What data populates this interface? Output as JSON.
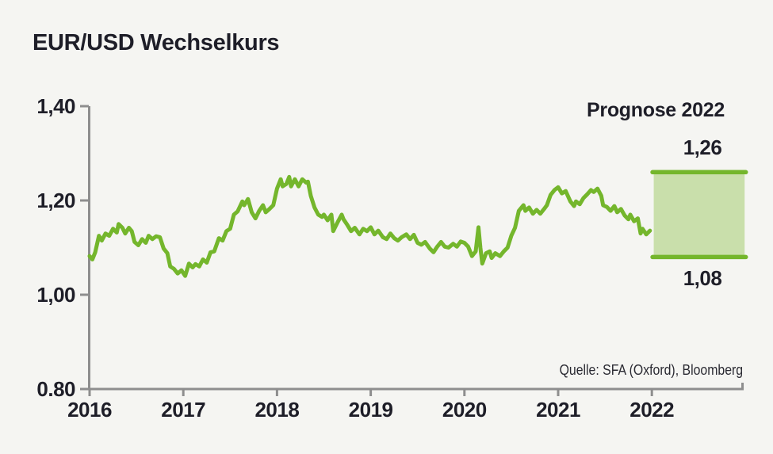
{
  "page": {
    "background": "#f5f5f2"
  },
  "chart_data": {
    "type": "line",
    "title": "EUR/USD Wechselkurs",
    "xlabel": "",
    "ylabel": "",
    "grid": false,
    "legend_position": "none",
    "xlim": [
      2016,
      2022.98
    ],
    "ylim": [
      0.8,
      1.4
    ],
    "colors": {
      "line": "#74b62c",
      "band_fill": "#c9dfab",
      "band_border": "#74b62c",
      "axis": "#8e8e8e",
      "text": "#1e1e28"
    },
    "y_axis": {
      "ticks": [
        {
          "value": 1.4,
          "label": "1,40"
        },
        {
          "value": 1.2,
          "label": "1,20"
        },
        {
          "value": 1.0,
          "label": "1,00"
        },
        {
          "value": 0.8,
          "label": "0.80"
        }
      ]
    },
    "x_axis": {
      "ticks": [
        {
          "value": 2016,
          "label": "2016"
        },
        {
          "value": 2017,
          "label": "2017"
        },
        {
          "value": 2018,
          "label": "2018"
        },
        {
          "value": 2019,
          "label": "2019"
        },
        {
          "value": 2020,
          "label": "2020"
        },
        {
          "value": 2021,
          "label": "2021"
        },
        {
          "value": 2022,
          "label": "2022"
        }
      ]
    },
    "series": [
      {
        "name": "EUR/USD Wechselkurs",
        "points": [
          [
            2016.0,
            1.082
          ],
          [
            2016.03,
            1.075
          ],
          [
            2016.06,
            1.09
          ],
          [
            2016.1,
            1.125
          ],
          [
            2016.13,
            1.115
          ],
          [
            2016.17,
            1.13
          ],
          [
            2016.21,
            1.125
          ],
          [
            2016.25,
            1.14
          ],
          [
            2016.29,
            1.132
          ],
          [
            2016.31,
            1.15
          ],
          [
            2016.35,
            1.142
          ],
          [
            2016.38,
            1.13
          ],
          [
            2016.42,
            1.142
          ],
          [
            2016.45,
            1.135
          ],
          [
            2016.48,
            1.112
          ],
          [
            2016.52,
            1.105
          ],
          [
            2016.56,
            1.118
          ],
          [
            2016.6,
            1.11
          ],
          [
            2016.63,
            1.125
          ],
          [
            2016.67,
            1.118
          ],
          [
            2016.71,
            1.124
          ],
          [
            2016.75,
            1.122
          ],
          [
            2016.79,
            1.098
          ],
          [
            2016.83,
            1.088
          ],
          [
            2016.86,
            1.06
          ],
          [
            2016.9,
            1.055
          ],
          [
            2016.94,
            1.045
          ],
          [
            2016.98,
            1.052
          ],
          [
            2017.02,
            1.04
          ],
          [
            2017.06,
            1.066
          ],
          [
            2017.1,
            1.058
          ],
          [
            2017.13,
            1.065
          ],
          [
            2017.17,
            1.06
          ],
          [
            2017.21,
            1.075
          ],
          [
            2017.25,
            1.068
          ],
          [
            2017.29,
            1.09
          ],
          [
            2017.33,
            1.092
          ],
          [
            2017.38,
            1.12
          ],
          [
            2017.42,
            1.115
          ],
          [
            2017.46,
            1.135
          ],
          [
            2017.5,
            1.14
          ],
          [
            2017.54,
            1.17
          ],
          [
            2017.58,
            1.177
          ],
          [
            2017.63,
            1.198
          ],
          [
            2017.65,
            1.19
          ],
          [
            2017.69,
            1.203
          ],
          [
            2017.73,
            1.175
          ],
          [
            2017.77,
            1.162
          ],
          [
            2017.81,
            1.178
          ],
          [
            2017.85,
            1.19
          ],
          [
            2017.88,
            1.175
          ],
          [
            2017.92,
            1.182
          ],
          [
            2017.96,
            1.19
          ],
          [
            2018.0,
            1.225
          ],
          [
            2018.04,
            1.245
          ],
          [
            2018.06,
            1.23
          ],
          [
            2018.1,
            1.235
          ],
          [
            2018.13,
            1.25
          ],
          [
            2018.15,
            1.23
          ],
          [
            2018.19,
            1.245
          ],
          [
            2018.23,
            1.23
          ],
          [
            2018.27,
            1.245
          ],
          [
            2018.31,
            1.238
          ],
          [
            2018.33,
            1.24
          ],
          [
            2018.36,
            1.21
          ],
          [
            2018.4,
            1.185
          ],
          [
            2018.44,
            1.17
          ],
          [
            2018.48,
            1.165
          ],
          [
            2018.5,
            1.17
          ],
          [
            2018.54,
            1.158
          ],
          [
            2018.58,
            1.17
          ],
          [
            2018.6,
            1.135
          ],
          [
            2018.65,
            1.155
          ],
          [
            2018.69,
            1.17
          ],
          [
            2018.71,
            1.16
          ],
          [
            2018.75,
            1.148
          ],
          [
            2018.79,
            1.135
          ],
          [
            2018.83,
            1.142
          ],
          [
            2018.88,
            1.128
          ],
          [
            2018.92,
            1.14
          ],
          [
            2018.96,
            1.135
          ],
          [
            2019.0,
            1.143
          ],
          [
            2019.04,
            1.128
          ],
          [
            2019.08,
            1.136
          ],
          [
            2019.13,
            1.122
          ],
          [
            2019.17,
            1.118
          ],
          [
            2019.21,
            1.13
          ],
          [
            2019.25,
            1.12
          ],
          [
            2019.29,
            1.115
          ],
          [
            2019.33,
            1.122
          ],
          [
            2019.38,
            1.128
          ],
          [
            2019.42,
            1.118
          ],
          [
            2019.46,
            1.127
          ],
          [
            2019.5,
            1.11
          ],
          [
            2019.54,
            1.106
          ],
          [
            2019.58,
            1.112
          ],
          [
            2019.63,
            1.098
          ],
          [
            2019.67,
            1.09
          ],
          [
            2019.71,
            1.102
          ],
          [
            2019.75,
            1.112
          ],
          [
            2019.79,
            1.102
          ],
          [
            2019.83,
            1.1
          ],
          [
            2019.88,
            1.108
          ],
          [
            2019.92,
            1.102
          ],
          [
            2019.96,
            1.113
          ],
          [
            2020.0,
            1.11
          ],
          [
            2020.04,
            1.102
          ],
          [
            2020.08,
            1.082
          ],
          [
            2020.12,
            1.092
          ],
          [
            2020.15,
            1.143
          ],
          [
            2020.17,
            1.1
          ],
          [
            2020.19,
            1.066
          ],
          [
            2020.23,
            1.088
          ],
          [
            2020.27,
            1.092
          ],
          [
            2020.29,
            1.078
          ],
          [
            2020.33,
            1.088
          ],
          [
            2020.38,
            1.082
          ],
          [
            2020.42,
            1.092
          ],
          [
            2020.46,
            1.1
          ],
          [
            2020.5,
            1.125
          ],
          [
            2020.54,
            1.142
          ],
          [
            2020.58,
            1.178
          ],
          [
            2020.63,
            1.19
          ],
          [
            2020.65,
            1.178
          ],
          [
            2020.69,
            1.185
          ],
          [
            2020.73,
            1.172
          ],
          [
            2020.77,
            1.18
          ],
          [
            2020.81,
            1.172
          ],
          [
            2020.85,
            1.182
          ],
          [
            2020.88,
            1.19
          ],
          [
            2020.92,
            1.212
          ],
          [
            2020.96,
            1.222
          ],
          [
            2021.0,
            1.228
          ],
          [
            2021.04,
            1.215
          ],
          [
            2021.08,
            1.22
          ],
          [
            2021.13,
            1.198
          ],
          [
            2021.17,
            1.188
          ],
          [
            2021.19,
            1.198
          ],
          [
            2021.23,
            1.192
          ],
          [
            2021.27,
            1.205
          ],
          [
            2021.31,
            1.213
          ],
          [
            2021.35,
            1.222
          ],
          [
            2021.38,
            1.218
          ],
          [
            2021.42,
            1.225
          ],
          [
            2021.46,
            1.21
          ],
          [
            2021.48,
            1.19
          ],
          [
            2021.52,
            1.186
          ],
          [
            2021.56,
            1.178
          ],
          [
            2021.6,
            1.188
          ],
          [
            2021.63,
            1.175
          ],
          [
            2021.67,
            1.182
          ],
          [
            2021.71,
            1.168
          ],
          [
            2021.75,
            1.16
          ],
          [
            2021.77,
            1.17
          ],
          [
            2021.81,
            1.156
          ],
          [
            2021.85,
            1.162
          ],
          [
            2021.88,
            1.13
          ],
          [
            2021.9,
            1.14
          ],
          [
            2021.94,
            1.128
          ],
          [
            2021.98,
            1.136
          ]
        ]
      }
    ],
    "forecast": {
      "label": "Prognose 2022",
      "x_start": 2022.02,
      "x_end": 2022.99,
      "high": 1.26,
      "low": 1.08,
      "high_label": "1,26",
      "low_label": "1,08"
    },
    "source": "Quelle: SFA (Oxford), Bloomberg"
  }
}
